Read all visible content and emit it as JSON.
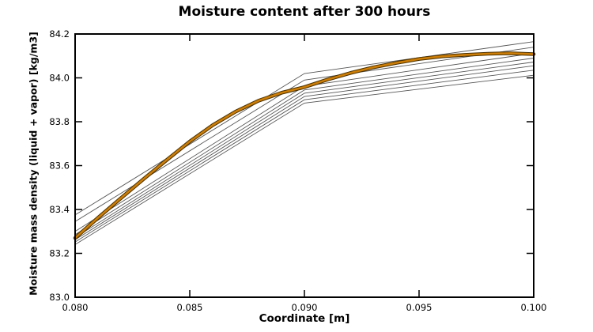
{
  "figure": {
    "background_color": "#ffffff",
    "axis_color": "#000000",
    "thin_line_color": "#565656",
    "highlight_core_color": "#cc7e08",
    "highlight_outline_color": "#4a3000"
  },
  "chart_data": {
    "type": "line",
    "title": "Moisture content after 300 hours",
    "xlabel": "Coordinate [m]",
    "ylabel": "Moisture mass density (liquid + vapor) [kg/m3]",
    "xlim": [
      0.08,
      0.1
    ],
    "ylim": [
      83.0,
      84.2
    ],
    "xticks": [
      0.08,
      0.085,
      0.09,
      0.095,
      0.1
    ],
    "xtick_labels": [
      "0.080",
      "0.085",
      "0.090",
      "0.095",
      "0.100"
    ],
    "yticks": [
      83.0,
      83.2,
      83.4,
      83.6,
      83.8,
      84.0,
      84.2
    ],
    "ytick_labels": [
      "83.0",
      "83.2",
      "83.4",
      "83.6",
      "83.8",
      "84.0",
      "84.2"
    ],
    "grid": false,
    "legend": "none",
    "tick_style": "inward-all-sides",
    "series": [
      {
        "id": "thin-line-1",
        "style": "thin-gray",
        "x": [
          0.08,
          0.09,
          0.1
        ],
        "y": [
          83.375,
          84.02,
          84.165
        ]
      },
      {
        "id": "thin-line-2",
        "style": "thin-gray",
        "x": [
          0.08,
          0.09,
          0.1
        ],
        "y": [
          83.345,
          83.99,
          84.14
        ]
      },
      {
        "id": "thin-line-3",
        "style": "thin-gray",
        "x": [
          0.08,
          0.09,
          0.1
        ],
        "y": [
          83.3,
          83.962,
          84.112
        ]
      },
      {
        "id": "thin-line-4",
        "style": "thin-gray",
        "x": [
          0.08,
          0.09,
          0.1
        ],
        "y": [
          83.285,
          83.945,
          84.09
        ]
      },
      {
        "id": "thin-line-5",
        "style": "thin-gray",
        "x": [
          0.08,
          0.09,
          0.1
        ],
        "y": [
          83.272,
          83.93,
          84.072
        ]
      },
      {
        "id": "thin-line-6",
        "style": "thin-gray",
        "x": [
          0.08,
          0.09,
          0.1
        ],
        "y": [
          83.262,
          83.915,
          84.055
        ]
      },
      {
        "id": "thin-line-7",
        "style": "thin-gray",
        "x": [
          0.08,
          0.09,
          0.1
        ],
        "y": [
          83.252,
          83.9,
          84.035
        ]
      },
      {
        "id": "thin-line-8",
        "style": "thin-gray",
        "x": [
          0.08,
          0.09,
          0.1
        ],
        "y": [
          83.24,
          83.885,
          84.012
        ]
      },
      {
        "id": "highlighted-line",
        "style": "thick-orange",
        "x": [
          0.08,
          0.081,
          0.082,
          0.083,
          0.084,
          0.085,
          0.086,
          0.087,
          0.088,
          0.089,
          0.09,
          0.091,
          0.092,
          0.093,
          0.094,
          0.095,
          0.096,
          0.097,
          0.098,
          0.099,
          0.1
        ],
        "y": [
          83.27,
          83.362,
          83.452,
          83.54,
          83.626,
          83.71,
          83.784,
          83.846,
          83.896,
          83.932,
          83.958,
          83.992,
          84.022,
          84.048,
          84.068,
          84.086,
          84.098,
          84.105,
          84.11,
          84.112,
          84.108
        ]
      }
    ]
  }
}
